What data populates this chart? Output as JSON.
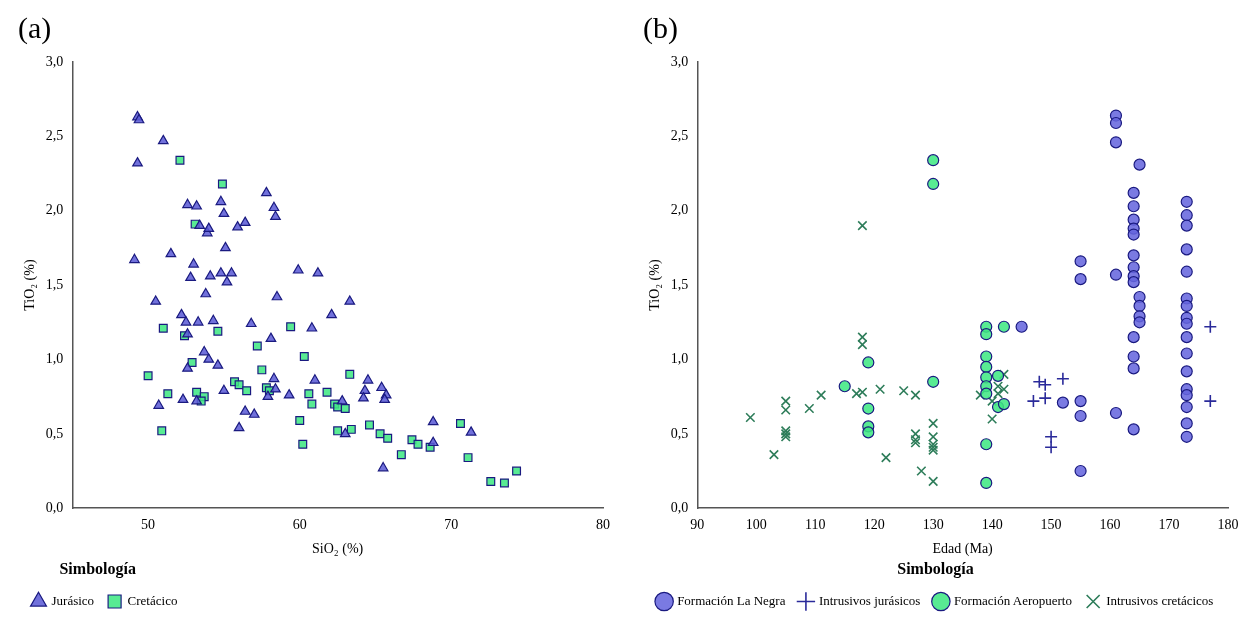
{
  "chart_data": [
    {
      "type": "scatter",
      "title": "(a)",
      "xlabel": "SiO₂ (%)",
      "ylabel": "TiO₂ (%)",
      "legend_title": "Simbología",
      "legend": "bottom left",
      "xlim": [
        45,
        80
      ],
      "xticks": [
        50,
        60,
        70,
        80
      ],
      "ylim": [
        0,
        3
      ],
      "yticks": [
        {
          "value": 0,
          "label": "0,0"
        },
        {
          "value": 0.5,
          "label": "0,5"
        },
        {
          "value": 1,
          "label": "1,0"
        },
        {
          "value": 1.5,
          "label": "1,5"
        },
        {
          "value": 2,
          "label": "2,0"
        },
        {
          "value": 2.5,
          "label": "2,5"
        },
        {
          "value": 3,
          "label": "3,0"
        }
      ],
      "series": [
        {
          "name": "Jurásico",
          "color": "#5b5bd6",
          "marker": "triangle",
          "x": [
            49.3,
            49.4,
            49.3,
            49.1,
            51.0,
            50.5,
            51.5,
            50.7,
            52.6,
            53.2,
            53.4,
            53.9,
            54.0,
            54.8,
            55.0,
            55.1,
            55.9,
            56.4,
            57.8,
            58.3,
            58.4,
            52.8,
            53.0,
            53.8,
            54.1,
            54.8,
            55.2,
            55.5,
            58.5,
            59.9,
            61.2,
            62.1,
            63.3,
            60.8,
            52.2,
            52.5,
            52.6,
            53.3,
            54.3,
            56.8,
            58.1,
            52.6,
            53.7,
            54.0,
            54.6,
            55.0,
            52.3,
            53.2,
            56.0,
            56.4,
            57.0,
            58.3,
            58.4,
            57.9,
            59.3,
            61.0,
            62.8,
            63.0,
            64.3,
            64.5,
            64.2,
            65.4,
            65.7,
            65.6,
            65.5,
            68.8,
            68.8,
            71.3
          ],
          "values": [
            2.63,
            2.61,
            2.32,
            1.67,
            2.47,
            1.39,
            1.71,
            0.69,
            2.04,
            2.03,
            1.9,
            1.85,
            1.88,
            2.06,
            1.98,
            1.75,
            1.89,
            1.92,
            2.12,
            2.02,
            1.96,
            1.55,
            1.64,
            1.44,
            1.56,
            1.58,
            1.52,
            1.58,
            1.42,
            1.6,
            1.58,
            1.3,
            1.39,
            1.21,
            1.3,
            1.25,
            1.17,
            1.25,
            1.26,
            1.24,
            1.14,
            0.94,
            1.05,
            1.0,
            0.96,
            0.79,
            0.73,
            0.72,
            0.54,
            0.65,
            0.63,
            0.87,
            0.8,
            0.75,
            0.76,
            0.86,
            0.72,
            0.5,
            0.79,
            0.86,
            0.74,
            0.81,
            0.76,
            0.73,
            0.27,
            0.58,
            0.44,
            0.51
          ]
        },
        {
          "name": "Cretácico",
          "color": "#3ee882",
          "marker": "square",
          "x": [
            52.1,
            54.9,
            53.1,
            51.0,
            52.4,
            54.6,
            57.2,
            59.4,
            60.3,
            50.0,
            51.3,
            50.9,
            52.9,
            53.2,
            53.7,
            53.5,
            55.7,
            56.0,
            56.5,
            57.5,
            57.8,
            58.0,
            60.0,
            60.2,
            60.6,
            60.8,
            61.8,
            62.3,
            62.5,
            63.3,
            63.0,
            62.5,
            63.4,
            64.6,
            65.3,
            65.8,
            66.7,
            67.4,
            67.8,
            68.6,
            70.6,
            71.1,
            72.6,
            73.5,
            74.3
          ],
          "values": [
            2.34,
            2.18,
            1.91,
            1.21,
            1.16,
            1.19,
            1.09,
            1.22,
            1.02,
            0.89,
            0.77,
            0.52,
            0.98,
            0.78,
            0.75,
            0.72,
            0.85,
            0.83,
            0.79,
            0.93,
            0.81,
            0.79,
            0.59,
            0.43,
            0.77,
            0.7,
            0.78,
            0.7,
            0.68,
            0.9,
            0.67,
            0.52,
            0.53,
            0.56,
            0.5,
            0.47,
            0.36,
            0.46,
            0.43,
            0.41,
            0.57,
            0.34,
            0.18,
            0.17,
            0.25
          ]
        }
      ]
    },
    {
      "type": "scatter",
      "title": "(b)",
      "xlabel": "Edad (Ma)",
      "ylabel": "TiO₂ (%)",
      "legend_title": "Simbología",
      "legend": "bottom",
      "xlim": [
        90,
        180
      ],
      "xticks": [
        90,
        100,
        110,
        120,
        130,
        140,
        150,
        160,
        170,
        180
      ],
      "ylim": [
        0,
        3
      ],
      "yticks": [
        {
          "value": 0,
          "label": "0,0"
        },
        {
          "value": 0.5,
          "label": "0,5"
        },
        {
          "value": 1,
          "label": "1,0"
        },
        {
          "value": 1.5,
          "label": "1,5"
        },
        {
          "value": 2,
          "label": "2,0"
        },
        {
          "value": 2.5,
          "label": "2,5"
        },
        {
          "value": 3,
          "label": "3,0"
        }
      ],
      "series": [
        {
          "name": "Formación La Negra",
          "color": "#6666dd",
          "marker": "circle",
          "x": [
            145,
            152,
            155,
            155,
            155,
            155,
            155,
            161,
            161,
            161,
            161,
            161,
            164,
            164,
            164,
            164,
            164,
            164,
            164,
            164,
            164,
            164,
            164,
            164,
            164,
            165,
            165,
            165,
            165,
            165,
            173,
            173,
            173,
            173,
            173,
            173,
            173,
            173,
            173,
            173,
            173,
            173,
            173,
            173,
            173,
            173,
            173
          ],
          "values": [
            1.22,
            0.71,
            1.66,
            1.54,
            0.72,
            0.62,
            0.25,
            2.64,
            2.59,
            2.46,
            1.57,
            0.64,
            2.12,
            2.03,
            1.94,
            1.88,
            1.84,
            1.7,
            1.62,
            1.56,
            1.52,
            1.15,
            1.02,
            0.94,
            0.53,
            2.31,
            1.42,
            1.36,
            1.29,
            1.25,
            2.06,
            1.97,
            1.9,
            1.74,
            1.59,
            1.41,
            1.36,
            1.28,
            1.24,
            1.15,
            1.04,
            0.92,
            0.8,
            0.76,
            0.68,
            0.57,
            0.48
          ]
        },
        {
          "name": "Intrusivos jurásicos",
          "color": "#2a2a9a",
          "marker": "cross",
          "x": [
            177,
            177,
            148,
            149,
            149,
            147,
            152,
            150,
            150
          ],
          "values": [
            1.22,
            0.72,
            0.85,
            0.83,
            0.74,
            0.72,
            0.87,
            0.48,
            0.41
          ]
        },
        {
          "name": "Formación Aeropuerto",
          "color": "#3ee882",
          "marker": "circle",
          "x": [
            115,
            119,
            119,
            119,
            119,
            130,
            130,
            130,
            139,
            139,
            139,
            139,
            139,
            139,
            139,
            139,
            139,
            141,
            141,
            142,
            142
          ],
          "values": [
            0.82,
            0.98,
            0.67,
            0.55,
            0.51,
            2.34,
            2.18,
            0.85,
            1.22,
            1.17,
            1.02,
            0.95,
            0.88,
            0.82,
            0.77,
            0.43,
            0.17,
            0.89,
            0.68,
            1.22,
            0.7
          ]
        },
        {
          "name": "Intrusivos cretácicos",
          "color": "#2e7d5a",
          "marker": "x",
          "x": [
            99,
            103,
            105,
            105,
            105,
            105,
            105,
            109,
            111,
            117,
            118,
            118,
            118,
            118,
            121,
            122,
            125,
            127,
            127,
            127,
            127,
            128,
            130,
            130,
            130,
            130,
            130,
            130,
            138,
            140,
            140,
            141,
            141,
            142,
            142
          ],
          "values": [
            0.61,
            0.36,
            0.72,
            0.66,
            0.52,
            0.5,
            0.48,
            0.67,
            0.76,
            0.77,
            1.9,
            1.15,
            1.1,
            0.78,
            0.8,
            0.34,
            0.79,
            0.76,
            0.5,
            0.46,
            0.44,
            0.25,
            0.57,
            0.48,
            0.43,
            0.41,
            0.39,
            0.18,
            0.76,
            0.6,
            0.72,
            0.82,
            0.77,
            0.9,
            0.8
          ]
        }
      ]
    }
  ]
}
